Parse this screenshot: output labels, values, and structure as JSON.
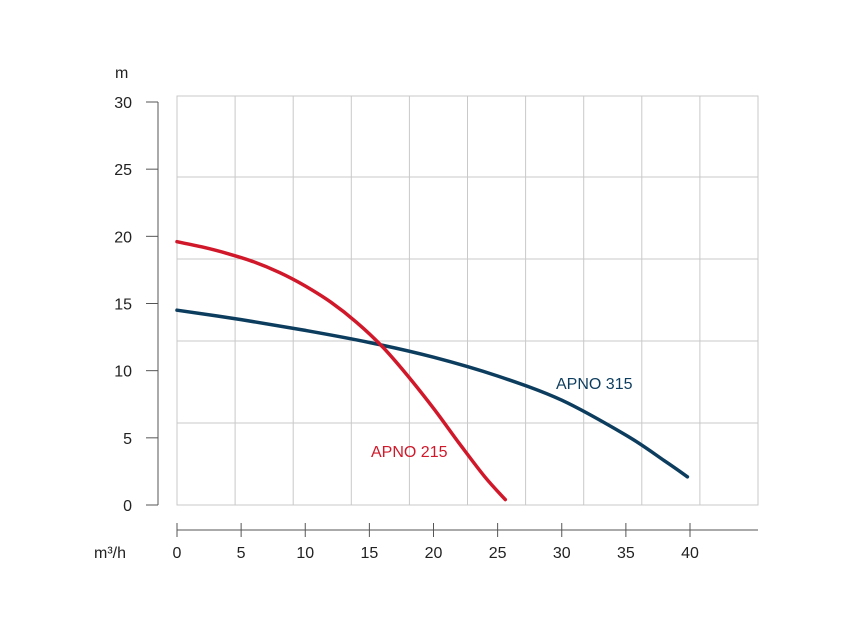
{
  "chart_data": {
    "type": "line",
    "xlabel": "m³/h",
    "ylabel": "m",
    "xlim": [
      0,
      45
    ],
    "ylim": [
      0,
      30
    ],
    "x_ticks": [
      0,
      5,
      10,
      15,
      20,
      25,
      30,
      35,
      40
    ],
    "y_ticks": [
      0,
      5,
      10,
      15,
      20,
      25,
      30
    ],
    "grid": true,
    "series": [
      {
        "name": "APNO 215",
        "color": "#d0182a",
        "points": [
          [
            0,
            19.6
          ],
          [
            2,
            19.2
          ],
          [
            4,
            18.7
          ],
          [
            6,
            18.1
          ],
          [
            8,
            17.3
          ],
          [
            10,
            16.3
          ],
          [
            12,
            15.1
          ],
          [
            14,
            13.6
          ],
          [
            16,
            11.8
          ],
          [
            18,
            9.6
          ],
          [
            20,
            7.2
          ],
          [
            22,
            4.6
          ],
          [
            24,
            2.1
          ],
          [
            25.6,
            0.4
          ]
        ]
      },
      {
        "name": "APNO 315",
        "color": "#0d3d5e",
        "points": [
          [
            0,
            14.5
          ],
          [
            5,
            13.8
          ],
          [
            10,
            13.0
          ],
          [
            15,
            12.1
          ],
          [
            20,
            11.0
          ],
          [
            25,
            9.6
          ],
          [
            30,
            7.8
          ],
          [
            35,
            5.2
          ],
          [
            38,
            3.3
          ],
          [
            39.8,
            2.1
          ]
        ]
      }
    ]
  }
}
